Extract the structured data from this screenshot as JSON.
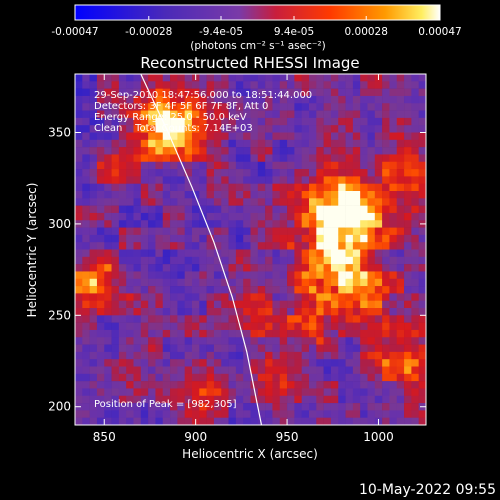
{
  "chart_data": {
    "type": "heatmap",
    "title": "Reconstructed RHESSI Image",
    "xlabel": "Heliocentric X (arcsec)",
    "ylabel": "Heliocentric Y (arcsec)",
    "xlim": [
      834,
      1026
    ],
    "ylim": [
      190,
      382
    ],
    "x_ticks": [
      850,
      900,
      950,
      1000
    ],
    "y_ticks": [
      200,
      250,
      300,
      350
    ],
    "colorbar": {
      "vmin": -0.00047,
      "vmax": 0.00047,
      "tick_values": [
        -0.00047,
        -0.00028,
        -9.4e-05,
        9.4e-05,
        0.00028,
        0.00047
      ],
      "tick_labels": [
        "-0.00047",
        "-0.00028",
        "-9.4e-05",
        "9.4e-05",
        "0.00028",
        "0.00047"
      ],
      "units_label": "(photons cm⁻² s⁻¹ asec⁻²)"
    },
    "colormap": [
      "#0000ff",
      "#5a32b4",
      "#7e3ac0",
      "#c0223a",
      "#ff3300",
      "#ff9900",
      "#ffff80",
      "#ffffff"
    ],
    "annotations": [
      "29-Sep-2010 18:47:56.000 to 18:51:44.000",
      "Detectors: 3F 4F 5F 6F 7F 8F, Att 0",
      "Energy Range: 25.0 - 50.0 keV",
      "Clean    Total Counts: 7.14E+03"
    ],
    "peak_label": "Position of Peak = [982,305]",
    "peak": [
      982,
      305
    ],
    "limb_curve": [
      [
        870,
        382
      ],
      [
        885,
        350
      ],
      [
        898,
        320
      ],
      [
        910,
        290
      ],
      [
        920,
        260
      ],
      [
        928,
        230
      ],
      [
        934,
        200
      ],
      [
        936,
        190
      ]
    ],
    "sources": [
      {
        "x": 885,
        "y": 355,
        "intensity": 0.95,
        "spread": 14
      },
      {
        "x": 982,
        "y": 305,
        "intensity": 1.0,
        "spread": 16
      },
      {
        "x": 975,
        "y": 275,
        "intensity": 0.7,
        "spread": 14
      },
      {
        "x": 1010,
        "y": 225,
        "intensity": 0.6,
        "spread": 12
      },
      {
        "x": 1015,
        "y": 330,
        "intensity": 0.55,
        "spread": 12
      },
      {
        "x": 845,
        "y": 268,
        "intensity": 0.6,
        "spread": 10
      },
      {
        "x": 945,
        "y": 215,
        "intensity": 0.5,
        "spread": 11
      },
      {
        "x": 905,
        "y": 210,
        "intensity": 0.45,
        "spread": 10
      },
      {
        "x": 960,
        "y": 245,
        "intensity": 0.45,
        "spread": 11
      },
      {
        "x": 930,
        "y": 255,
        "intensity": 0.35,
        "spread": 9
      },
      {
        "x": 995,
        "y": 260,
        "intensity": 0.4,
        "spread": 10
      },
      {
        "x": 860,
        "y": 330,
        "intensity": 0.4,
        "spread": 9
      }
    ]
  },
  "footer": {
    "date": "10-May-2022 09:55"
  }
}
